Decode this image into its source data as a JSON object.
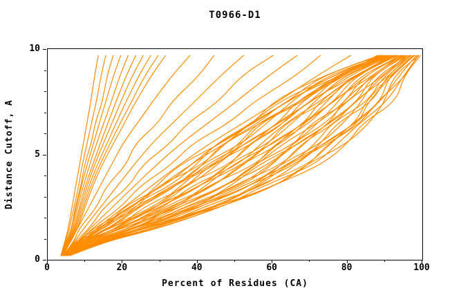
{
  "chart_data": {
    "type": "line",
    "title": "T0966-D1",
    "xlabel": "Percent of Residues (CA)",
    "ylabel": "Distance Cutoff, A",
    "xlim": [
      0,
      100
    ],
    "ylim": [
      0,
      10
    ],
    "grid": false,
    "legend": "none",
    "line_color": "#ff8c00",
    "axis_color": "#000000",
    "background_color": "#ffffff",
    "x_ticks": {
      "major": [
        0,
        20,
        40,
        60,
        80,
        100
      ],
      "minor_step": 10
    },
    "y_ticks": {
      "major": [
        0,
        5,
        10
      ],
      "minor_step": 1
    },
    "cutoffs": [
      0.2,
      0.8,
      1.5,
      2.5,
      3.5,
      4.5,
      5.5,
      6.5,
      7.5,
      8.7,
      9.7
    ],
    "curves": [
      [
        4,
        8,
        12,
        23,
        29,
        35,
        46,
        55,
        60,
        73,
        88.5
      ],
      [
        4.1,
        6.2,
        15.6,
        19.9,
        31.1,
        38.2,
        45.2,
        55.1,
        64,
        72.8,
        88.9
      ],
      [
        4.1,
        7.5,
        15.1,
        23.8,
        29.2,
        41.3,
        47.3,
        54.3,
        64.1,
        75.5,
        89.3
      ],
      [
        4.2,
        8.7,
        14.7,
        22.7,
        34.3,
        41.5,
        46.5,
        56.4,
        63.1,
        77.3,
        89.6
      ],
      [
        4.3,
        7,
        13.2,
        24.6,
        34.4,
        40.7,
        51.7,
        58.6,
        65.1,
        74,
        90
      ],
      [
        4.3,
        8.2,
        16.8,
        24.5,
        33.5,
        44.9,
        51.9,
        56.7,
        68.2,
        76.8,
        90.4
      ],
      [
        4.4,
        9.4,
        15.3,
        28.4,
        35.6,
        42,
        53,
        61.8,
        66.2,
        77.6,
        90.8
      ],
      [
        4.5,
        7.7,
        18.9,
        25.3,
        37.7,
        45.2,
        52.2,
        62,
        70.2,
        77.3,
        91.2
      ],
      [
        4.6,
        8.9,
        18.4,
        29.2,
        35.8,
        48.4,
        54.4,
        61.1,
        70.3,
        80.1,
        91.5
      ],
      [
        4.6,
        10.2,
        18,
        28.1,
        40.9,
        48.6,
        53.6,
        63.2,
        69.3,
        81.8,
        91.9
      ],
      [
        4.7,
        8.4,
        16.5,
        30,
        41,
        47.7,
        58.7,
        65.4,
        71.3,
        78.6,
        92.3
      ],
      [
        4.8,
        9.7,
        20.1,
        29.9,
        40.1,
        51.9,
        58.9,
        63.5,
        74.4,
        81.3,
        92.7
      ],
      [
        4.8,
        10.9,
        18.6,
        33.8,
        42.2,
        49.1,
        60.1,
        68.7,
        72.4,
        82.1,
        93.1
      ],
      [
        4.9,
        9.1,
        22.2,
        30.7,
        44.3,
        52.2,
        59.2,
        68.8,
        76.4,
        81.9,
        93.4
      ],
      [
        5,
        10.4,
        21.7,
        34.6,
        42.5,
        55.4,
        61.4,
        67.9,
        76.5,
        84.6,
        93.8
      ],
      [
        5,
        11.6,
        21.3,
        33.4,
        47.5,
        55.6,
        60.6,
        70.1,
        75.5,
        86.4,
        94.2
      ],
      [
        5.1,
        9.9,
        19.8,
        35.4,
        47.7,
        54.8,
        65.8,
        72.2,
        77.6,
        83.1,
        94.6
      ],
      [
        5.2,
        11.1,
        23.4,
        35.2,
        46.8,
        58.9,
        65.9,
        70.3,
        80.6,
        85.9,
        94.9
      ],
      [
        5.2,
        12.3,
        21.9,
        39.1,
        48.9,
        56.1,
        67.1,
        75.5,
        78.6,
        86.7,
        95.3
      ],
      [
        5.3,
        10.6,
        25.5,
        36,
        51,
        59.3,
        66.3,
        75.6,
        82.7,
        86.4,
        95.7
      ],
      [
        5.4,
        11.8,
        25,
        39.9,
        49.1,
        62.4,
        68.4,
        74.8,
        82.7,
        89.2,
        96.1
      ],
      [
        5.4,
        13.1,
        24.6,
        38.8,
        54.2,
        62.6,
        67.6,
        76.9,
        81.7,
        90.9,
        96.5
      ],
      [
        5.5,
        11.3,
        23.1,
        40.7,
        54.3,
        61.8,
        72.8,
        79,
        83.8,
        87.7,
        96.8
      ],
      [
        5.6,
        12.6,
        26.7,
        40.6,
        53.4,
        66,
        72.9,
        77.2,
        86.8,
        90.4,
        97.2
      ],
      [
        5.7,
        13.8,
        25.2,
        44.5,
        55.5,
        63.1,
        74.1,
        82.3,
        84.8,
        91.2,
        97.6
      ],
      [
        5.7,
        12,
        28.8,
        41.4,
        57.6,
        66.3,
        73.3,
        82.4,
        88.9,
        91,
        98
      ],
      [
        5.8,
        13.3,
        28.3,
        45.3,
        55.7,
        69.5,
        75.5,
        81.6,
        88.9,
        93.7,
        98.4
      ],
      [
        5.9,
        14.5,
        27.9,
        44.2,
        60.8,
        69.7,
        74.7,
        83.7,
        87.9,
        95.5,
        98.7
      ],
      [
        5.9,
        12.8,
        26.4,
        46.1,
        60.9,
        68.8,
        79.8,
        85.9,
        90,
        92.2,
        99.1
      ],
      [
        6,
        14,
        30,
        46,
        60,
        73,
        80,
        84,
        93,
        95,
        99.5
      ],
      [
        4.1,
        8.4,
        13.8,
        21.3,
        32.6,
        39.7,
        44.7,
        54.7,
        61.5,
        76.1,
        89.1
      ],
      [
        4.3,
        8.1,
        16.4,
        23.9,
        32.8,
        44.1,
        51.1,
        56,
        67.5,
        76.3,
        90.2
      ],
      [
        4.5,
        9.8,
        16,
        29.5,
        37,
        43.5,
        54.5,
        63.3,
        67.5,
        78.5,
        91.3
      ],
      [
        4.7,
        9.5,
        19.6,
        31.1,
        38.2,
        50.9,
        56.9,
        63.6,
        72.5,
        81.7,
        92.4
      ],
      [
        4.9,
        9.2,
        18.2,
        32.7,
        44.4,
        51.3,
        62.3,
        68.9,
        74.5,
        80.9,
        93.5
      ],
      [
        5.1,
        9.9,
        23.8,
        33.3,
        47.6,
        55.7,
        62.7,
        72.2,
        79.5,
        84.1,
        94.6
      ],
      [
        5.3,
        12.6,
        23.4,
        36.9,
        51.8,
        60.1,
        65.1,
        74.5,
        79.5,
        89.3,
        95.7
      ],
      [
        5.5,
        12.3,
        26,
        39.5,
        52,
        64.5,
        71.5,
        75.8,
        85.5,
        89.5,
        96.8
      ],
      [
        5.7,
        14,
        25.6,
        45.1,
        56.2,
        63.9,
        74.9,
        83.1,
        85.5,
        91.7,
        97.9
      ],
      [
        5.9,
        13.7,
        29.2,
        46.7,
        57.4,
        71.3,
        77.3,
        83.4,
        90.5,
        94.9,
        99
      ],
      [
        3.5,
        4.5,
        5.5,
        6.5,
        7.5,
        8.5,
        9.5,
        10.5,
        11.5,
        12.5,
        13.5
      ],
      [
        3.5,
        4.7,
        5.8,
        7,
        8.3,
        9.2,
        10.5,
        11.7,
        13,
        14.2,
        15.5
      ],
      [
        3.6,
        4.8,
        6.4,
        7.3,
        8.9,
        9.8,
        11.6,
        12.7,
        14.6,
        15.8,
        17.5
      ],
      [
        3.6,
        5,
        6.3,
        7.7,
        9,
        10.5,
        12.2,
        13.8,
        15.5,
        17.5,
        19.5
      ],
      [
        3.7,
        5.2,
        6.6,
        8,
        9.5,
        11.2,
        13,
        15,
        17,
        19.2,
        21.5
      ],
      [
        3.7,
        5.3,
        6.9,
        8.5,
        10,
        12,
        14,
        16.1,
        18.2,
        20.9,
        23.5
      ],
      [
        3.8,
        5.5,
        7.2,
        8.8,
        10.5,
        12.5,
        14.8,
        17.2,
        19.5,
        22.5,
        25.5
      ],
      [
        3.8,
        5.7,
        7.4,
        9.2,
        11,
        13.2,
        15.8,
        18.3,
        20.9,
        24.2,
        27.5
      ],
      [
        3.9,
        5.8,
        7.7,
        9.6,
        11.5,
        13.9,
        16.6,
        19.4,
        22.4,
        25.8,
        29.5
      ],
      [
        3.9,
        6,
        8,
        10,
        12,
        14.5,
        17.5,
        20.5,
        23.5,
        27.5,
        31.5
      ],
      [
        4,
        6,
        8,
        11,
        14,
        17,
        20,
        24,
        28,
        33,
        38
      ],
      [
        4,
        6.9,
        8.4,
        13.2,
        15.6,
        21,
        23.2,
        29.6,
        33,
        40.2,
        44.4
      ],
      [
        4.1,
        6.9,
        9.7,
        14.1,
        18.6,
        23,
        27.7,
        33.4,
        39.2,
        45.9,
        52.3
      ],
      [
        4.1,
        7,
        11.2,
        15,
        21.8,
        25.2,
        32.6,
        37.3,
        45.6,
        51.4,
        60.2
      ],
      [
        4.2,
        7.7,
        11.4,
        17.3,
        23.1,
        29,
        35.4,
        42.9,
        50.3,
        58.7,
        66.6
      ],
      [
        4.2,
        8.5,
        11.8,
        19.6,
        24.6,
        33,
        38.4,
        48.5,
        55,
        66,
        72.8
      ],
      [
        4.3,
        8.6,
        13.1,
        20.4,
        27.7,
        35,
        43.1,
        52.3,
        61.4,
        71.6,
        80.9
      ],
      [
        4.3,
        9,
        14,
        22,
        30,
        38,
        47,
        57,
        67,
        78,
        88
      ]
    ]
  }
}
